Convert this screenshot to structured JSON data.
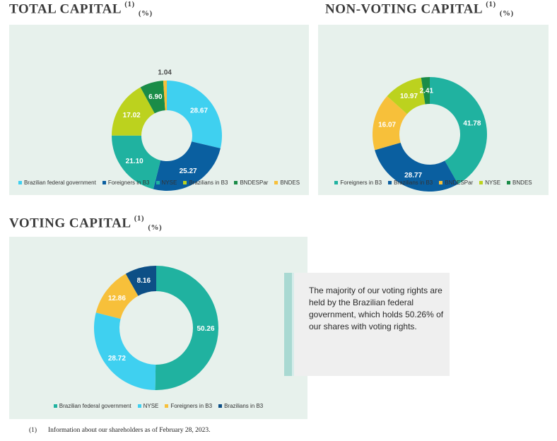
{
  "colors": {
    "teal": "#20b2a0",
    "light_blue": "#3fd0f0",
    "dark_blue": "#0a5fa0",
    "navy": "#0d4f86",
    "lime": "#bcd21e",
    "green": "#1a8c48",
    "yellow": "#f7c03a",
    "panel": "#e7f1ec",
    "callout_bar": "#a9d9d2"
  },
  "sections": {
    "total": {
      "title": "TOTAL CAPITAL",
      "sup": "(1)",
      "unit": "(%)"
    },
    "non_voting": {
      "title": "NON-VOTING CAPITAL",
      "sup": "(1)",
      "unit": "(%)"
    },
    "voting": {
      "title": "VOTING CAPITAL",
      "sup": "(1)",
      "unit": "(%)"
    }
  },
  "callout": {
    "text": "The majority of our voting rights are held by the Brazilian federal government, which holds 50.26% of our shares with voting rights."
  },
  "footnote": {
    "number": "(1)",
    "text": "Information about our shareholders as of February 28, 2023."
  },
  "chart_data": [
    {
      "type": "pie",
      "variant": "donut",
      "title": "TOTAL CAPITAL",
      "unit": "%",
      "legend_position": "bottom",
      "legend": [
        {
          "name": "Brazilian federal government",
          "color": "#3fd0f0"
        },
        {
          "name": "Foreigners in B3",
          "color": "#0a5fa0"
        },
        {
          "name": "NYSE",
          "color": "#20b2a0"
        },
        {
          "name": "Brazilians in B3",
          "color": "#bcd21e"
        },
        {
          "name": "BNDESPar",
          "color": "#1a8c48"
        },
        {
          "name": "BNDES",
          "color": "#f7c03a"
        }
      ],
      "slices": [
        {
          "name": "Brazilian federal government",
          "value": 28.67,
          "label": "28.67",
          "color": "#3fd0f0"
        },
        {
          "name": "Foreigners in B3",
          "value": 25.27,
          "label": "25.27",
          "color": "#0a5fa0"
        },
        {
          "name": "NYSE",
          "value": 21.1,
          "label": "21.10",
          "color": "#20b2a0"
        },
        {
          "name": "Brazilians in B3",
          "value": 17.02,
          "label": "17.02",
          "color": "#bcd21e"
        },
        {
          "name": "BNDESPar",
          "value": 6.9,
          "label": "6.90",
          "color": "#1a8c48"
        },
        {
          "name": "BNDES",
          "value": 1.04,
          "label": "1.04",
          "color": "#f7c03a"
        }
      ]
    },
    {
      "type": "pie",
      "variant": "donut",
      "title": "NON-VOTING CAPITAL",
      "unit": "%",
      "legend_position": "bottom",
      "legend": [
        {
          "name": "Foreigners in B3",
          "color": "#20b2a0"
        },
        {
          "name": "Brazilians in B3",
          "color": "#0a5fa0"
        },
        {
          "name": "BNDESPar",
          "color": "#f7c03a"
        },
        {
          "name": "NYSE",
          "color": "#bcd21e"
        },
        {
          "name": "BNDES",
          "color": "#1a8c48"
        }
      ],
      "slices": [
        {
          "name": "Foreigners in B3",
          "value": 41.78,
          "label": "41.78",
          "color": "#20b2a0"
        },
        {
          "name": "Brazilians in B3",
          "value": 28.77,
          "label": "28.77",
          "color": "#0a5fa0"
        },
        {
          "name": "BNDESPar",
          "value": 16.07,
          "label": "16.07",
          "color": "#f7c03a"
        },
        {
          "name": "NYSE",
          "value": 10.97,
          "label": "10.97",
          "color": "#bcd21e"
        },
        {
          "name": "BNDES",
          "value": 2.41,
          "label": "2.41",
          "color": "#1a8c48"
        }
      ]
    },
    {
      "type": "pie",
      "variant": "donut",
      "title": "VOTING CAPITAL",
      "unit": "%",
      "legend_position": "bottom",
      "legend": [
        {
          "name": "Brazilian federal government",
          "color": "#20b2a0"
        },
        {
          "name": "NYSE",
          "color": "#3fd0f0"
        },
        {
          "name": "Foreigners in B3",
          "color": "#f7c03a"
        },
        {
          "name": "Brazilians in B3",
          "color": "#0d4f86"
        }
      ],
      "slices": [
        {
          "name": "Brazilian federal government",
          "value": 50.26,
          "label": "50.26",
          "color": "#20b2a0"
        },
        {
          "name": "NYSE",
          "value": 28.72,
          "label": "28.72",
          "color": "#3fd0f0"
        },
        {
          "name": "Foreigners in B3",
          "value": 12.86,
          "label": "12.86",
          "color": "#f7c03a"
        },
        {
          "name": "Brazilians in B3",
          "value": 8.16,
          "label": "8.16",
          "color": "#0d4f86"
        }
      ]
    }
  ]
}
